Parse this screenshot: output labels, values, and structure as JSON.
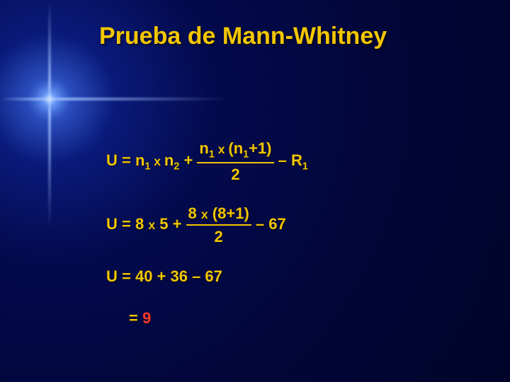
{
  "title": {
    "text": "Prueba de Mann-Whitney",
    "color": "#f2c600",
    "fontsize": 34
  },
  "colors": {
    "body_text": "#f2c600",
    "highlight": "#ff3a2f",
    "frac_border": "#f2c600"
  },
  "typography": {
    "body_fontsize": 22,
    "sub_scale": 0.65,
    "mul_scale": 0.8
  },
  "eq1": {
    "lhs": "U = n",
    "s1": "1",
    "mul1": " x ",
    "n2": "n",
    "s2": "2",
    "plus": "  +  ",
    "num_a": "n",
    "num_s1": "1",
    "num_mul": " x ",
    "num_b": "(n",
    "num_s2": "1",
    "num_c": "+1)",
    "den": "2",
    "tail_a": " – R",
    "tail_s": "1"
  },
  "eq2": {
    "lhs": "U = 8 ",
    "mul1": "x",
    "mid": " 5  +  ",
    "num_a": "8 ",
    "num_mul": "x",
    "num_b": " (8+1)",
    "den": "2",
    "tail": " – 67"
  },
  "eq3": {
    "text": "U = 40  +  36 – 67"
  },
  "eq4": {
    "prefix": "= ",
    "value": "9"
  }
}
